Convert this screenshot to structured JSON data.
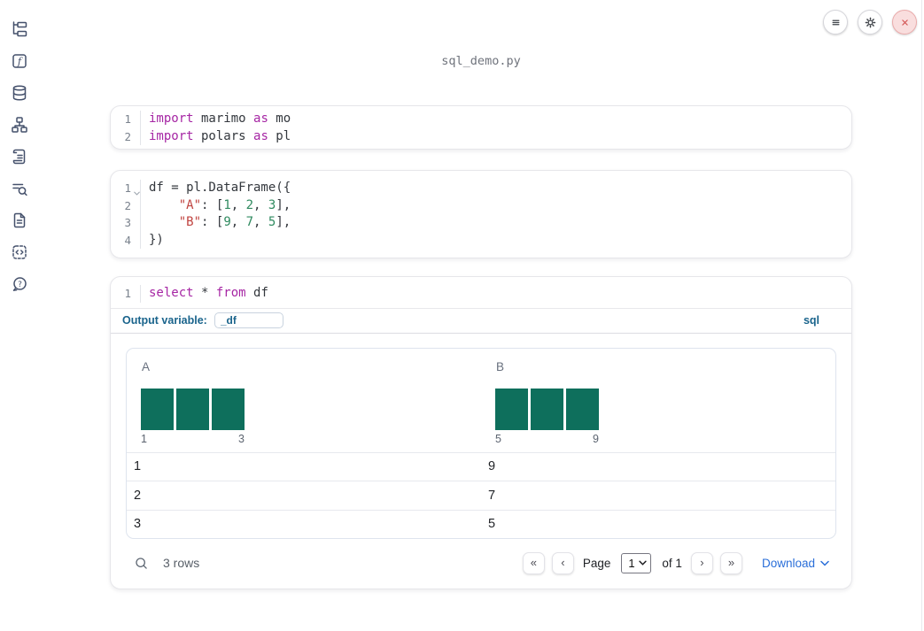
{
  "app": {
    "filename": "sql_demo.py"
  },
  "theme": {
    "histogram_bar_color": "#0e6f5c",
    "accent_blue": "#1a648c",
    "link_blue": "#2b6fd9",
    "keyword_color": "#a626a4",
    "string_color": "#c04440",
    "number_color": "#2f8a5f"
  },
  "topbar": {
    "buttons": [
      {
        "icon": "hamburger-menu-icon"
      },
      {
        "icon": "gear-icon"
      },
      {
        "icon": "close-x-icon"
      }
    ]
  },
  "sidebar": {
    "items": [
      {
        "icon": "file-tree-icon"
      },
      {
        "icon": "function-icon"
      },
      {
        "icon": "database-icon"
      },
      {
        "icon": "dependency-graph-icon"
      },
      {
        "icon": "scroll-icon"
      },
      {
        "icon": "logs-search-icon"
      },
      {
        "icon": "document-icon"
      },
      {
        "icon": "snippets-icon"
      },
      {
        "icon": "help-chat-icon"
      }
    ]
  },
  "cells": [
    {
      "id": "imports",
      "lines": [
        {
          "n": "1",
          "tokens": [
            {
              "s": "kw",
              "v": "import"
            },
            {
              "s": "pl",
              "v": " marimo "
            },
            {
              "s": "kw",
              "v": "as"
            },
            {
              "s": "pl",
              "v": " mo"
            }
          ]
        },
        {
          "n": "2",
          "tokens": [
            {
              "s": "kw",
              "v": "import"
            },
            {
              "s": "pl",
              "v": " polars "
            },
            {
              "s": "kw",
              "v": "as"
            },
            {
              "s": "pl",
              "v": " pl"
            }
          ]
        }
      ]
    },
    {
      "id": "dataframe",
      "lines": [
        {
          "n": "1",
          "fold": true,
          "tokens": [
            {
              "s": "pl",
              "v": "df = pl.DataFrame({"
            }
          ]
        },
        {
          "n": "2",
          "tokens": [
            {
              "s": "pl",
              "v": "    "
            },
            {
              "s": "str",
              "v": "\"A\""
            },
            {
              "s": "pl",
              "v": ": ["
            },
            {
              "s": "num",
              "v": "1"
            },
            {
              "s": "pl",
              "v": ", "
            },
            {
              "s": "num",
              "v": "2"
            },
            {
              "s": "pl",
              "v": ", "
            },
            {
              "s": "num",
              "v": "3"
            },
            {
              "s": "pl",
              "v": "],"
            }
          ]
        },
        {
          "n": "3",
          "tokens": [
            {
              "s": "pl",
              "v": "    "
            },
            {
              "s": "str",
              "v": "\"B\""
            },
            {
              "s": "pl",
              "v": ": ["
            },
            {
              "s": "num",
              "v": "9"
            },
            {
              "s": "pl",
              "v": ", "
            },
            {
              "s": "num",
              "v": "7"
            },
            {
              "s": "pl",
              "v": ", "
            },
            {
              "s": "num",
              "v": "5"
            },
            {
              "s": "pl",
              "v": "],"
            }
          ]
        },
        {
          "n": "4",
          "tokens": [
            {
              "s": "pl",
              "v": "})"
            }
          ]
        }
      ]
    },
    {
      "id": "sql",
      "lines": [
        {
          "n": "1",
          "tokens": [
            {
              "s": "kw",
              "v": "select"
            },
            {
              "s": "pl",
              "v": " * "
            },
            {
              "s": "kw",
              "v": "from"
            },
            {
              "s": "pl",
              "v": " df"
            }
          ]
        }
      ]
    }
  ],
  "sql_cell": {
    "output_variable_label": "Output variable:",
    "output_variable_value": "_df",
    "language": "sql"
  },
  "table": {
    "columns": [
      {
        "name": "A",
        "histogram": {
          "values": [
            1,
            1,
            1
          ],
          "min_label": "1",
          "max_label": "3"
        }
      },
      {
        "name": "B",
        "histogram": {
          "values": [
            1,
            1,
            1
          ],
          "min_label": "5",
          "max_label": "9"
        }
      }
    ],
    "rows": [
      [
        "1",
        "9"
      ],
      [
        "2",
        "7"
      ],
      [
        "3",
        "5"
      ]
    ],
    "footer": {
      "row_count": "3 rows",
      "first_page_glyph": "«",
      "prev_page_glyph": "‹",
      "page_label": "Page",
      "page_value": "1",
      "of_label": "of 1",
      "next_page_glyph": "›",
      "last_page_glyph": "»",
      "download_label": "Download"
    }
  }
}
